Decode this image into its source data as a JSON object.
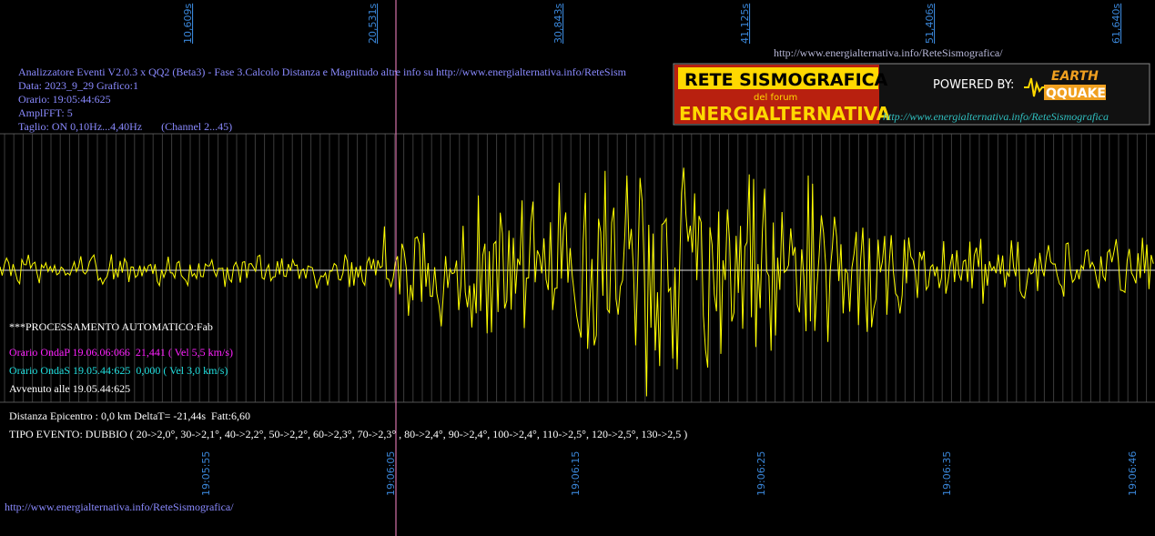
{
  "top_axis": [
    "10,609s",
    "20,531s",
    "30,843s",
    "41,125s",
    "51,406s",
    "61,640s"
  ],
  "top_url": "http://www.energialternativa.info/ReteSismografica/",
  "header": [
    "Analizzatore Eventi V2.0.3 x QQ2 (Beta3) - Fase 3.Calcolo Distanza e Magnitudo altre info su http://www.energialternativa.info/ReteSism",
    "Data: 2023_9_29 Grafico:1",
    "Orario: 19:05:44:625",
    "AmplFFT: 5",
    "Taglio: ON 0,10Hz...4,40Hz       (Channel 2...45)"
  ],
  "logo": {
    "title": "RETE SISMOGRAFICA",
    "subtitle": "del forum",
    "name": "ENERGIALTERNATIVA",
    "powered": "POWERED BY:",
    "brand_top": "EARTH",
    "brand_bottom": "QQUAKE",
    "url": "http://www.energialternativa.info/ReteSismografica"
  },
  "processing": {
    "title": "***PROCESSAMENTO AUTOMATICO:Fab",
    "wave_p": "Orario OndaP 19.06.06:066  21,441 ( Vel 5,5 km/s)",
    "wave_s": "Orario OndaS 19.05.44:625  0,000 ( Vel 3,0 km/s)",
    "occurred": "Avvenuto alle 19.05.44:625"
  },
  "summary": [
    "Distanza Epicentro : 0,0 km DeltaT= -21,44s  Fatt:6,60",
    "TIPO EVENTO: DUBBIO ( 20->2,0°, 30->2,1°, 40->2,2°, 50->2,2°, 60->2,3°, 70->2,3° , 80->2,4°, 90->2,4°, 100->2,4°, 110->2,5°, 120->2,5°, 130->2,5 )"
  ],
  "bottom_axis": [
    "19:05:55",
    "19:06:05",
    "19:06:15",
    "19:06:25",
    "19:06:35",
    "19:06:46"
  ],
  "bottom_url": "http://www.energialternativa.info/ReteSismografica/"
}
